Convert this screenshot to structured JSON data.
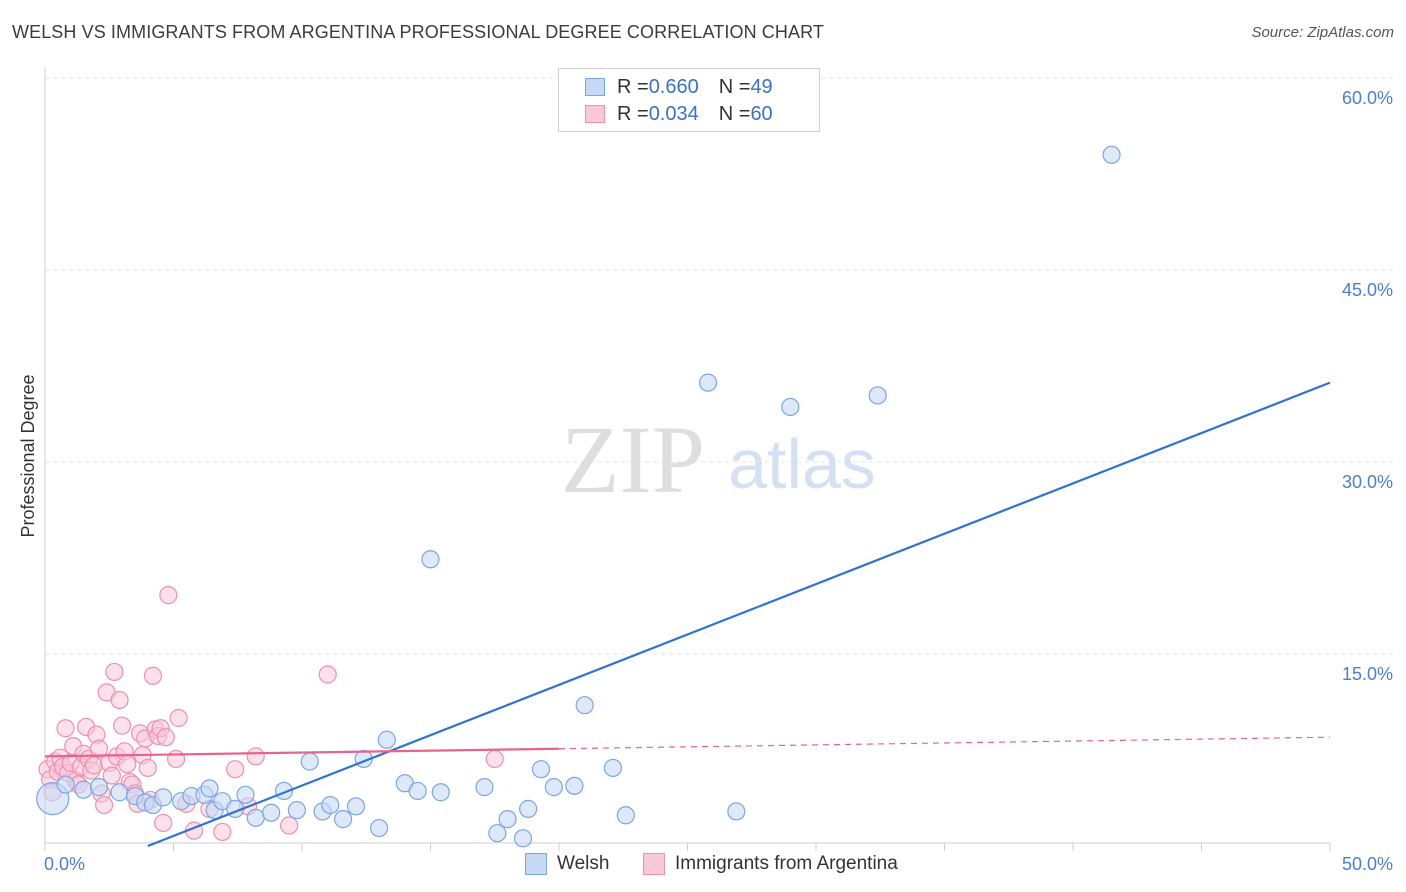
{
  "title": "WELSH VS IMMIGRANTS FROM ARGENTINA PROFESSIONAL DEGREE CORRELATION CHART",
  "source": "Source: ZipAtlas.com",
  "watermark": {
    "zip": "ZIP",
    "atlas": "atlas"
  },
  "legend": {
    "welsh": {
      "r_label": "R = ",
      "r_value": "0.660",
      "n_label": "N = ",
      "n_value": "49"
    },
    "argentina": {
      "r_label": "R = ",
      "r_value": "0.034",
      "n_label": "N = ",
      "n_value": "60"
    }
  },
  "bottom_legend": {
    "welsh": "Welsh",
    "argentina": "Immigrants from Argentina"
  },
  "colors": {
    "welsh_fill": "#c6d9f5",
    "welsh_stroke": "#7aa6e6",
    "welsh_line": "#2f72d4",
    "arg_fill": "#f9c9d8",
    "arg_stroke": "#ef8fae",
    "arg_line": "#e8648e",
    "grid": "#e3e3e3",
    "tick_text": "#4a7fd0"
  },
  "chart_data": {
    "type": "scatter",
    "title": "WELSH VS IMMIGRANTS FROM ARGENTINA PROFESSIONAL DEGREE CORRELATION CHART",
    "xlabel": "",
    "ylabel": "Professional Degree",
    "xlim": [
      0,
      50
    ],
    "ylim": [
      0,
      62
    ],
    "x_tick_labels": [
      "0.0%",
      "50.0%"
    ],
    "y_ticks": [
      15,
      30,
      45,
      60
    ],
    "y_tick_labels": [
      "15.0%",
      "30.0%",
      "45.0%",
      "60.0%"
    ],
    "grid": true,
    "series": [
      {
        "name": "Welsh",
        "r": 0.66,
        "n": 49,
        "trend": {
          "x": [
            4.0,
            50.0
          ],
          "y": [
            0.0,
            36.2
          ],
          "solid_to": 50.0
        },
        "points": [
          [
            0.3,
            3.7
          ],
          [
            0.8,
            4.8
          ],
          [
            1.5,
            4.4
          ],
          [
            2.1,
            4.6
          ],
          [
            2.9,
            4.2
          ],
          [
            3.5,
            3.9
          ],
          [
            3.9,
            3.4
          ],
          [
            4.2,
            3.2
          ],
          [
            4.6,
            3.8
          ],
          [
            5.3,
            3.5
          ],
          [
            5.7,
            3.9
          ],
          [
            6.2,
            4.0
          ],
          [
            6.4,
            4.5
          ],
          [
            6.6,
            2.8
          ],
          [
            6.9,
            3.5
          ],
          [
            7.4,
            2.9
          ],
          [
            7.8,
            4.0
          ],
          [
            8.2,
            2.2
          ],
          [
            8.8,
            2.6
          ],
          [
            9.3,
            4.3
          ],
          [
            9.8,
            2.8
          ],
          [
            10.3,
            6.6
          ],
          [
            10.8,
            2.7
          ],
          [
            11.1,
            3.2
          ],
          [
            11.6,
            2.1
          ],
          [
            12.1,
            3.1
          ],
          [
            12.4,
            6.8
          ],
          [
            13.0,
            1.4
          ],
          [
            13.3,
            8.3
          ],
          [
            14.0,
            4.9
          ],
          [
            14.5,
            4.3
          ],
          [
            15.4,
            4.2
          ],
          [
            17.1,
            4.6
          ],
          [
            17.6,
            1.0
          ],
          [
            18.0,
            2.1
          ],
          [
            18.6,
            0.6
          ],
          [
            18.8,
            2.9
          ],
          [
            19.3,
            6.0
          ],
          [
            19.8,
            4.6
          ],
          [
            20.6,
            4.7
          ],
          [
            21.0,
            11.0
          ],
          [
            22.1,
            6.1
          ],
          [
            22.6,
            2.4
          ],
          [
            26.9,
            2.7
          ],
          [
            15.0,
            22.4
          ],
          [
            25.8,
            36.2
          ],
          [
            29.0,
            34.3
          ],
          [
            32.4,
            35.2
          ],
          [
            41.5,
            54.0
          ]
        ]
      },
      {
        "name": "Immigrants from Argentina",
        "r": 0.034,
        "n": 60,
        "trend": {
          "x": [
            0.0,
            50.0
          ],
          "y": [
            7.0,
            8.5
          ],
          "solid_to": 20.0
        },
        "points": [
          [
            0.1,
            6.0
          ],
          [
            0.2,
            5.2
          ],
          [
            0.3,
            4.2
          ],
          [
            0.4,
            6.6
          ],
          [
            0.5,
            5.8
          ],
          [
            0.6,
            6.9
          ],
          [
            0.7,
            6.2
          ],
          [
            0.8,
            9.2
          ],
          [
            0.9,
            5.7
          ],
          [
            1.0,
            6.5
          ],
          [
            1.1,
            7.8
          ],
          [
            1.2,
            5.1
          ],
          [
            1.3,
            4.8
          ],
          [
            1.4,
            6.2
          ],
          [
            1.5,
            7.2
          ],
          [
            1.6,
            9.3
          ],
          [
            1.7,
            6.8
          ],
          [
            1.8,
            5.9
          ],
          [
            1.9,
            6.3
          ],
          [
            2.0,
            8.7
          ],
          [
            2.1,
            7.6
          ],
          [
            2.2,
            4.1
          ],
          [
            2.3,
            3.2
          ],
          [
            2.4,
            12.0
          ],
          [
            2.5,
            6.5
          ],
          [
            2.6,
            5.5
          ],
          [
            2.7,
            13.6
          ],
          [
            2.8,
            7.0
          ],
          [
            2.9,
            11.4
          ],
          [
            3.0,
            9.4
          ],
          [
            3.1,
            7.4
          ],
          [
            3.2,
            6.4
          ],
          [
            3.3,
            5.0
          ],
          [
            3.4,
            4.8
          ],
          [
            3.5,
            4.1
          ],
          [
            3.6,
            3.3
          ],
          [
            3.7,
            8.8
          ],
          [
            3.8,
            7.1
          ],
          [
            3.9,
            8.4
          ],
          [
            4.0,
            6.1
          ],
          [
            4.1,
            3.6
          ],
          [
            4.2,
            13.3
          ],
          [
            4.3,
            9.1
          ],
          [
            4.4,
            8.6
          ],
          [
            4.5,
            9.2
          ],
          [
            4.6,
            1.8
          ],
          [
            4.7,
            8.5
          ],
          [
            4.8,
            19.6
          ],
          [
            5.1,
            6.8
          ],
          [
            5.2,
            10.0
          ],
          [
            5.5,
            3.3
          ],
          [
            5.8,
            1.2
          ],
          [
            6.4,
            2.9
          ],
          [
            6.9,
            1.1
          ],
          [
            7.4,
            6.0
          ],
          [
            7.9,
            3.1
          ],
          [
            8.2,
            7.0
          ],
          [
            9.5,
            1.6
          ],
          [
            11.0,
            13.4
          ],
          [
            17.5,
            6.8
          ]
        ]
      }
    ]
  }
}
